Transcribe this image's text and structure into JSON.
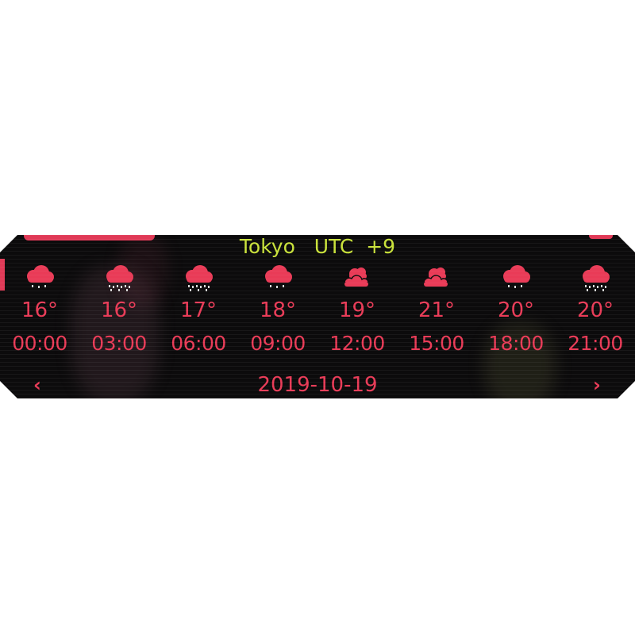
{
  "widget": {
    "city": "Tokyo",
    "utc_label": "UTC",
    "utc_offset": "+9",
    "accent_color": "#e93b57",
    "title_color": "#c9e13a",
    "background_color": "#0c0b0c"
  },
  "forecast": [
    {
      "icon": "rain-cloud-icon",
      "temp": "16°",
      "time": "00:00"
    },
    {
      "icon": "rain-cloud-icon",
      "temp": "16°",
      "time": "03:00"
    },
    {
      "icon": "rain-cloud-icon",
      "temp": "17°",
      "time": "06:00"
    },
    {
      "icon": "rain-cloud-icon",
      "temp": "18°",
      "time": "09:00"
    },
    {
      "icon": "cloudy-icon",
      "temp": "19°",
      "time": "12:00"
    },
    {
      "icon": "cloudy-icon",
      "temp": "21°",
      "time": "15:00"
    },
    {
      "icon": "rain-cloud-icon",
      "temp": "20°",
      "time": "18:00"
    },
    {
      "icon": "rain-cloud-icon",
      "temp": "20°",
      "time": "21:00"
    }
  ],
  "nav": {
    "prev_icon": "chevron-left-icon",
    "next_icon": "chevron-right-icon",
    "prev_glyph": "‹",
    "next_glyph": "›",
    "date": "2019-10-19"
  }
}
